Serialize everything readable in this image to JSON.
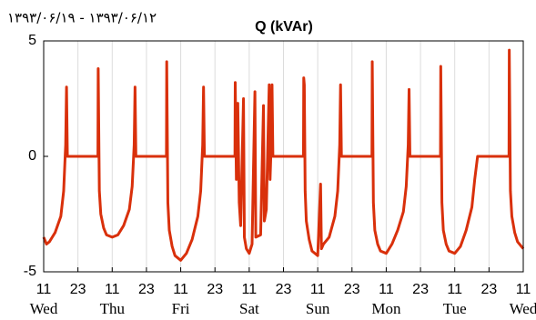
{
  "chart_data": {
    "type": "line",
    "title": "Q (kVAr)",
    "subtitle": "۱۳۹۳/۰۶/۱۹ - ۱۳۹۳/۰۶/۱۲",
    "x": [
      0,
      1,
      2,
      4,
      6,
      7,
      7.7,
      8,
      8.3,
      19,
      19.1,
      19.5,
      20,
      21,
      22,
      24,
      26,
      28,
      30,
      31,
      31.7,
      32,
      32.3,
      43,
      43.1,
      43.5,
      44,
      45,
      46,
      48,
      50,
      52,
      54,
      55,
      55.7,
      56,
      56.3,
      67,
      67.1,
      67.5,
      68,
      68.5,
      69,
      70,
      70.3,
      71,
      72,
      73,
      74,
      74.3,
      76,
      77,
      77.3,
      78,
      79,
      79.3,
      79.7,
      80,
      80.3,
      91,
      91.1,
      91.3,
      91.6,
      92,
      93,
      94,
      96,
      97,
      97.3,
      98,
      100,
      102,
      103,
      103.7,
      104,
      104.3,
      115,
      115.1,
      115.5,
      116,
      117,
      118,
      120,
      122,
      124,
      126,
      127,
      127.7,
      128,
      128.3,
      139,
      139.1,
      139.5,
      140,
      141,
      142,
      144,
      146,
      148,
      150,
      151,
      152,
      163,
      163.1,
      163.5,
      164,
      165,
      166,
      168
    ],
    "series": [
      {
        "color": "#d9300b",
        "values": [
          -3.5,
          -3.8,
          -3.7,
          -3.3,
          -2.6,
          -1.5,
          0.5,
          3.0,
          0,
          0,
          3.8,
          -1.5,
          -2.5,
          -3.1,
          -3.4,
          -3.5,
          -3.4,
          -3.0,
          -2.3,
          -1.3,
          0.5,
          3.0,
          0,
          0,
          4.1,
          -2,
          -3.2,
          -3.9,
          -4.3,
          -4.5,
          -4.2,
          -3.6,
          -2.6,
          -1.5,
          0.5,
          3.0,
          0,
          0,
          3.2,
          -1,
          2.3,
          -2,
          -3,
          2.5,
          -3.5,
          -4,
          -4.2,
          -3.8,
          2.8,
          -3.5,
          -3.4,
          2.2,
          -2.8,
          -2.3,
          3.1,
          -1,
          0.5,
          3.1,
          0,
          0,
          3.4,
          3.1,
          -1.5,
          -2.8,
          -3.6,
          -4.1,
          -4.3,
          -1.2,
          -4.0,
          -3.8,
          -3.5,
          -2.6,
          -1.5,
          0.5,
          3.1,
          0,
          0,
          4.1,
          -2,
          -3.2,
          -3.8,
          -4.1,
          -4.2,
          -3.8,
          -3.2,
          -2.4,
          -1.3,
          0.5,
          2.9,
          0,
          0,
          3.9,
          -2,
          -3.2,
          -3.8,
          -4.1,
          -4.2,
          -3.9,
          -3.2,
          -2.2,
          -1.0,
          0,
          0,
          4.6,
          -1.5,
          -2.6,
          -3.3,
          -3.7,
          -4.0
        ]
      }
    ],
    "xlim": [
      0,
      168
    ],
    "xticks": [
      {
        "value": 0,
        "label": "11"
      },
      {
        "value": 12,
        "label": "23"
      },
      {
        "value": 24,
        "label": "11"
      },
      {
        "value": 36,
        "label": "23"
      },
      {
        "value": 48,
        "label": "11"
      },
      {
        "value": 60,
        "label": "23"
      },
      {
        "value": 72,
        "label": "11"
      },
      {
        "value": 84,
        "label": "23"
      },
      {
        "value": 96,
        "label": "11"
      },
      {
        "value": 108,
        "label": "23"
      },
      {
        "value": 120,
        "label": "11"
      },
      {
        "value": 132,
        "label": "23"
      },
      {
        "value": 144,
        "label": "11"
      },
      {
        "value": 156,
        "label": "23"
      },
      {
        "value": 168,
        "label": "11"
      }
    ],
    "day_ticks": [
      {
        "value": 0,
        "label": "Wed"
      },
      {
        "value": 24,
        "label": "Thu"
      },
      {
        "value": 48,
        "label": "Fri"
      },
      {
        "value": 72,
        "label": "Sat"
      },
      {
        "value": 96,
        "label": "Sun"
      },
      {
        "value": 120,
        "label": "Mon"
      },
      {
        "value": 144,
        "label": "Tue"
      },
      {
        "value": 168,
        "label": "Wed"
      }
    ],
    "ylim": [
      -5,
      5
    ],
    "yticks": [
      -5,
      0,
      5
    ],
    "grid": "x"
  }
}
